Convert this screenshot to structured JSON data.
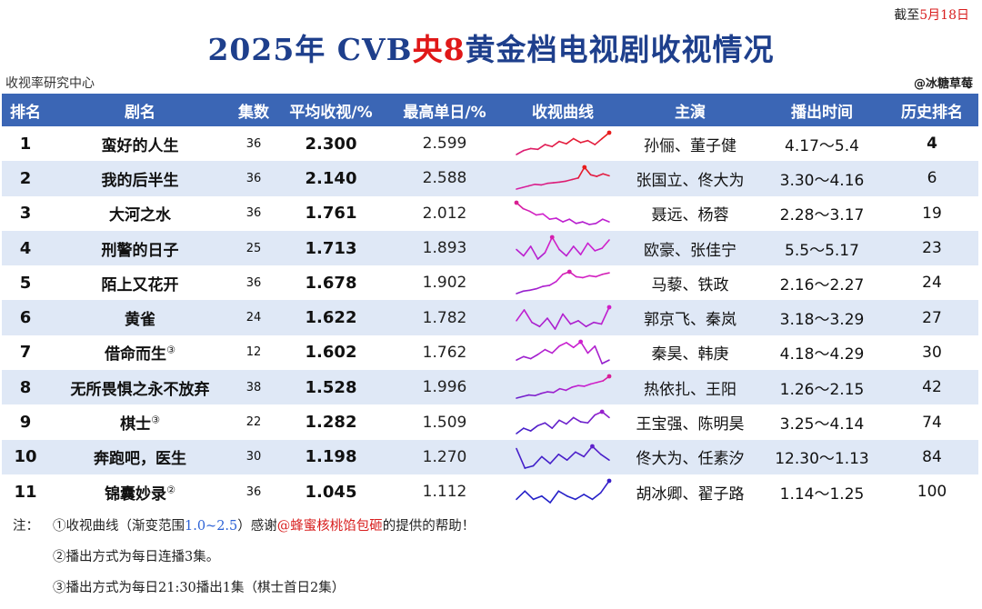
{
  "date": {
    "prefix": "截至",
    "value": "5月18日"
  },
  "title": {
    "part1": "2025年 CVB",
    "part2": "央8",
    "part3": "黄金档电视剧收视情况"
  },
  "source": "收视率研究中心",
  "credit": "@冰糖草莓",
  "headers": [
    "排名",
    "剧名",
    "集数",
    "平均收视/%",
    "最高单日/%",
    "收视曲线",
    "主演",
    "播出时间",
    "历史排名"
  ],
  "rows": [
    {
      "rank": "1",
      "name": "蛮好的人生",
      "sup": "",
      "episodes": "36",
      "avg": "2.300",
      "peak": "2.599",
      "cast": "孙俪、董子健",
      "time": "4.17～5.4",
      "history": "4",
      "history_bold": true
    },
    {
      "rank": "2",
      "name": "我的后半生",
      "sup": "",
      "episodes": "36",
      "avg": "2.140",
      "peak": "2.588",
      "cast": "张国立、佟大为",
      "time": "3.30～4.16",
      "history": "6",
      "history_bold": false
    },
    {
      "rank": "3",
      "name": "大河之水",
      "sup": "",
      "episodes": "36",
      "avg": "1.761",
      "peak": "2.012",
      "cast": "聂远、杨蓉",
      "time": "2.28～3.17",
      "history": "19",
      "history_bold": false
    },
    {
      "rank": "4",
      "name": "刑警的日子",
      "sup": "",
      "episodes": "25",
      "avg": "1.713",
      "peak": "1.893",
      "cast": "欧豪、张佳宁",
      "time": "5.5～5.17",
      "history": "23",
      "history_bold": false
    },
    {
      "rank": "5",
      "name": "陌上又花开",
      "sup": "",
      "episodes": "36",
      "avg": "1.678",
      "peak": "1.902",
      "cast": "马藜、铁政",
      "time": "2.16～2.27",
      "history": "24",
      "history_bold": false
    },
    {
      "rank": "6",
      "name": "黄雀",
      "sup": "",
      "episodes": "24",
      "avg": "1.622",
      "peak": "1.782",
      "cast": "郭京飞、秦岚",
      "time": "3.18～3.29",
      "history": "27",
      "history_bold": false
    },
    {
      "rank": "7",
      "name": "借命而生",
      "sup": "③",
      "episodes": "12",
      "avg": "1.602",
      "peak": "1.762",
      "cast": "秦昊、韩庚",
      "time": "4.18～4.29",
      "history": "30",
      "history_bold": false
    },
    {
      "rank": "8",
      "name": "无所畏惧之永不放弃",
      "sup": "",
      "episodes": "38",
      "avg": "1.528",
      "peak": "1.996",
      "cast": "热依扎、王阳",
      "time": "1.26～2.15",
      "history": "42",
      "history_bold": false
    },
    {
      "rank": "9",
      "name": "棋士",
      "sup": "③",
      "episodes": "22",
      "avg": "1.282",
      "peak": "1.509",
      "cast": "王宝强、陈明昊",
      "time": "3.25～4.14",
      "history": "74",
      "history_bold": false
    },
    {
      "rank": "10",
      "name": "奔跑吧，医生",
      "sup": "",
      "episodes": "30",
      "avg": "1.198",
      "peak": "1.270",
      "cast": "佟大为、任素汐",
      "time": "12.30～1.13",
      "history": "84",
      "history_bold": false
    },
    {
      "rank": "11",
      "name": "锦囊妙录",
      "sup": "②",
      "episodes": "36",
      "avg": "1.045",
      "peak": "1.112",
      "cast": "胡冰卿、翟子路",
      "time": "1.14～1.25",
      "history": "100",
      "history_bold": false
    }
  ],
  "chart_data": {
    "type": "line",
    "title": "收视曲线",
    "color_range": [
      1.0,
      2.5
    ],
    "gradient": [
      "#2020c8",
      "#d020d0",
      "#e81c1c"
    ],
    "series": [
      {
        "values": [
          2.05,
          2.15,
          2.2,
          2.18,
          2.3,
          2.25,
          2.38,
          2.32,
          2.45,
          2.35,
          2.4,
          2.3,
          2.45,
          2.599
        ]
      },
      {
        "values": [
          1.9,
          1.95,
          2.0,
          2.05,
          2.03,
          2.08,
          2.1,
          2.12,
          2.15,
          2.2,
          2.25,
          2.588,
          2.35,
          2.3,
          2.38,
          2.32
        ]
      },
      {
        "values": [
          2.012,
          1.9,
          1.85,
          1.78,
          1.8,
          1.7,
          1.72,
          1.65,
          1.7,
          1.62,
          1.65,
          1.6,
          1.62,
          1.7,
          1.65
        ]
      },
      {
        "values": [
          1.7,
          1.6,
          1.75,
          1.55,
          1.65,
          1.893,
          1.7,
          1.6,
          1.75,
          1.62,
          1.8,
          1.68,
          1.72,
          1.85
        ]
      },
      {
        "values": [
          1.45,
          1.5,
          1.52,
          1.55,
          1.6,
          1.62,
          1.7,
          1.85,
          1.902,
          1.8,
          1.78,
          1.82,
          1.8,
          1.85,
          1.88
        ]
      },
      {
        "values": [
          1.62,
          1.75,
          1.6,
          1.55,
          1.65,
          1.52,
          1.7,
          1.58,
          1.62,
          1.55,
          1.6,
          1.58,
          1.782
        ]
      },
      {
        "values": [
          1.5,
          1.55,
          1.52,
          1.58,
          1.65,
          1.6,
          1.7,
          1.75,
          1.68,
          1.762,
          1.6,
          1.7,
          1.45,
          1.5
        ]
      },
      {
        "values": [
          1.3,
          1.35,
          1.4,
          1.38,
          1.45,
          1.5,
          1.48,
          1.6,
          1.55,
          1.65,
          1.7,
          1.68,
          1.75,
          1.8,
          1.85,
          1.996
        ]
      },
      {
        "values": [
          1.1,
          1.2,
          1.15,
          1.25,
          1.3,
          1.2,
          1.35,
          1.28,
          1.4,
          1.32,
          1.3,
          1.45,
          1.509,
          1.4
        ]
      },
      {
        "values": [
          1.25,
          1.08,
          1.1,
          1.18,
          1.12,
          1.2,
          1.15,
          1.22,
          1.18,
          1.27,
          1.2,
          1.15
        ]
      },
      {
        "values": [
          1.0,
          1.05,
          1.0,
          1.02,
          0.98,
          1.05,
          1.02,
          1.0,
          1.03,
          1.0,
          1.04,
          1.112
        ]
      }
    ]
  },
  "notes": {
    "label": "注：",
    "n1_a": "①收视曲线（渐变范围",
    "n1_range": "1.0~2.5",
    "n1_b": "）感谢",
    "n1_name": "@蜂蜜核桃馅包砸",
    "n1_c": "的提供的帮助！",
    "n2": "②播出方式为每日连播3集。",
    "n3": "③播出方式为每日21:30播出1集（棋士首日2集）"
  }
}
